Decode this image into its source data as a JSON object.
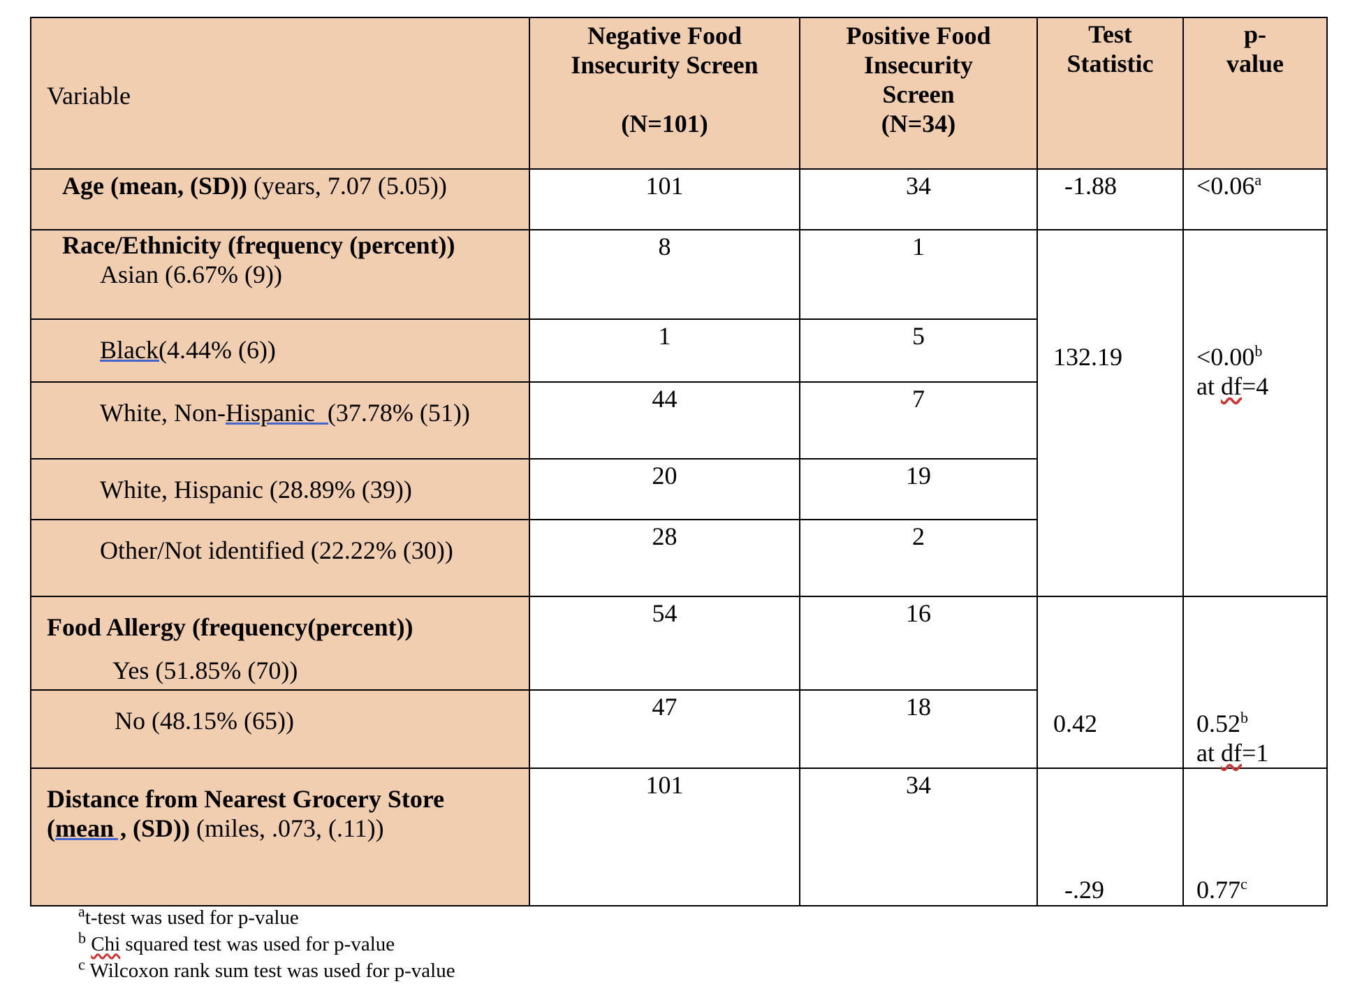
{
  "table": {
    "headers": {
      "variable": "Variable",
      "negative_line1": "Negative Food",
      "negative_line2": "Insecurity Screen",
      "negative_n": "(N=101)",
      "positive_line1": "Positive Food",
      "positive_line2": "Insecurity",
      "positive_line3": "Screen",
      "positive_n": "(N=34)",
      "test_line1": "Test",
      "test_line2": "Statistic",
      "p_line1": "p-",
      "p_line2": "value"
    },
    "age": {
      "label_bold": "Age (mean, (SD))",
      "label_rest": " (years, 7.07 (5.05))",
      "neg": "101",
      "pos": "34",
      "stat": "-1.88",
      "p": "<0.06",
      "p_sup": "a"
    },
    "race": {
      "heading_bold": "Race/Ethnicity (frequency (percent))",
      "stat": "132.19",
      "p": "<0.00",
      "p_sup": "b",
      "p_df_prefix": "at ",
      "p_df_word": "df",
      "p_df_value": "=4",
      "rows": [
        {
          "label": "Asian (6.67% (9))",
          "neg": "8",
          "pos": "1"
        },
        {
          "label_ul": "Black(",
          "label": "4.44% (6))",
          "neg": "1",
          "pos": "5"
        },
        {
          "label_pre": "White, Non-",
          "label_ul": "Hispanic  (",
          "label": "37.78% (51))",
          "neg": "44",
          "pos": "7"
        },
        {
          "label": "White, Hispanic (28.89% (39))",
          "neg": "20",
          "pos": "19"
        },
        {
          "label": "Other/Not identified (22.22% (30))",
          "neg": "28",
          "pos": "2"
        }
      ]
    },
    "allergy": {
      "heading_bold": "Food Allergy (frequency(percent))",
      "stat": "0.42",
      "p": "0.52",
      "p_sup": "b",
      "p_df_prefix": "at ",
      "p_df_word": "df",
      "p_df_value": "=1",
      "rows": [
        {
          "label": "Yes (51.85% (70))",
          "neg": "54",
          "pos": "16"
        },
        {
          "label": "No (48.15% (65))",
          "neg": "47",
          "pos": "18"
        }
      ]
    },
    "distance": {
      "label_bold_1": "Distance from Nearest Grocery Store (",
      "label_bold_ul": "mean ,",
      "label_bold_2": " (SD))",
      "label_rest": " (miles, .073, (.11))",
      "neg": "101",
      "pos": "34",
      "stat": "-.29",
      "p": "0.77",
      "p_sup": "c"
    }
  },
  "footnotes": {
    "a_sup": "a",
    "a_text": "t-test was used for p-value",
    "b_sup": "b",
    "b_word": "Chi",
    "b_text": " squared test was used for p-value",
    "c_sup": "c",
    "c_text": " Wilcoxon rank sum test was used for p-value"
  }
}
